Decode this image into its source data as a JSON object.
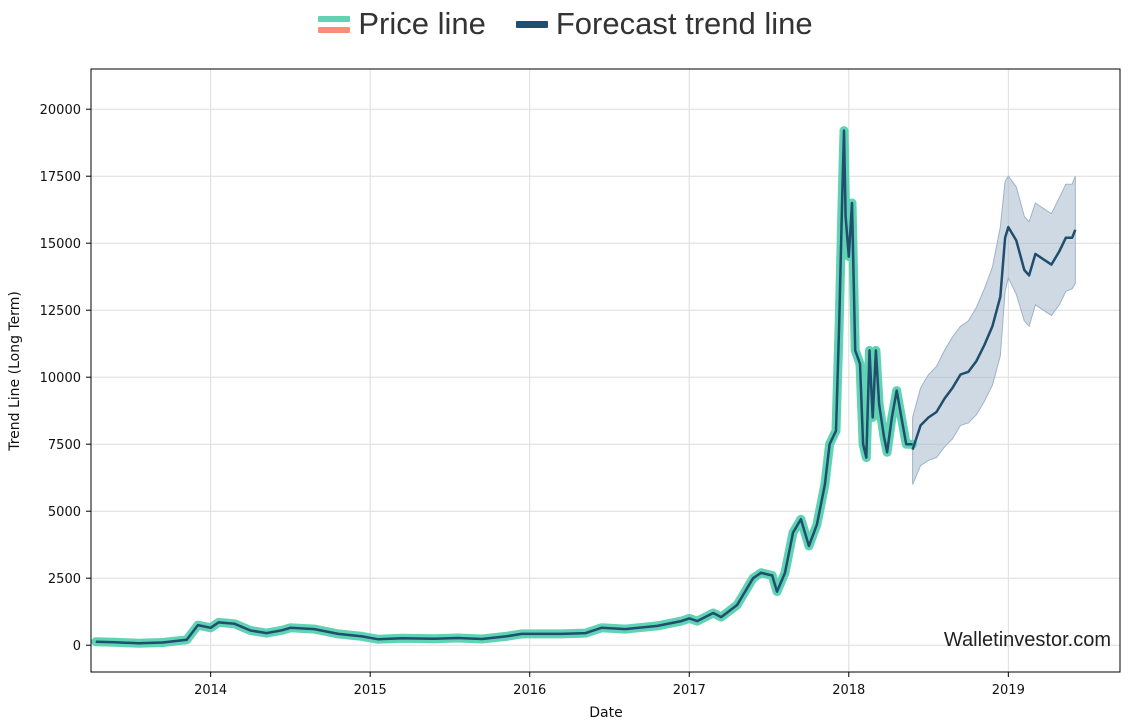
{
  "legend": {
    "price_label": "Price line",
    "forecast_label": "Forecast trend line"
  },
  "watermark": "Walletinvestor.com",
  "colors": {
    "price": "#5fd3b3",
    "price_alt": "#fa8c78",
    "trend": "#1f4e6e",
    "band": "#9db4c8",
    "grid": "#dddddd"
  },
  "chart_data": {
    "type": "line",
    "title": "",
    "xlabel": "Date",
    "ylabel": "Trend Line (Long Term)",
    "xlim": [
      2013.25,
      2019.7
    ],
    "ylim": [
      -1000,
      21500
    ],
    "xticks": [
      {
        "v": 2014,
        "label": "2014"
      },
      {
        "v": 2015,
        "label": "2015"
      },
      {
        "v": 2016,
        "label": "2016"
      },
      {
        "v": 2017,
        "label": "2017"
      },
      {
        "v": 2018,
        "label": "2018"
      },
      {
        "v": 2019,
        "label": "2019"
      }
    ],
    "yticks": [
      {
        "v": 0,
        "label": "0"
      },
      {
        "v": 2500,
        "label": "2500"
      },
      {
        "v": 5000,
        "label": "5000"
      },
      {
        "v": 7500,
        "label": "7500"
      },
      {
        "v": 10000,
        "label": "10000"
      },
      {
        "v": 12500,
        "label": "12500"
      },
      {
        "v": 15000,
        "label": "15000"
      },
      {
        "v": 17500,
        "label": "17500"
      },
      {
        "v": 20000,
        "label": "20000"
      }
    ],
    "grid": true,
    "series": [
      {
        "name": "Price line",
        "points": [
          [
            2013.28,
            130
          ],
          [
            2013.4,
            110
          ],
          [
            2013.55,
            70
          ],
          [
            2013.7,
            100
          ],
          [
            2013.85,
            200
          ],
          [
            2013.92,
            750
          ],
          [
            2014.0,
            650
          ],
          [
            2014.05,
            850
          ],
          [
            2014.15,
            800
          ],
          [
            2014.25,
            550
          ],
          [
            2014.35,
            450
          ],
          [
            2014.45,
            560
          ],
          [
            2014.5,
            650
          ],
          [
            2014.65,
            600
          ],
          [
            2014.8,
            420
          ],
          [
            2014.95,
            330
          ],
          [
            2015.05,
            220
          ],
          [
            2015.2,
            260
          ],
          [
            2015.4,
            240
          ],
          [
            2015.55,
            270
          ],
          [
            2015.7,
            230
          ],
          [
            2015.85,
            330
          ],
          [
            2015.95,
            420
          ],
          [
            2016.05,
            420
          ],
          [
            2016.2,
            420
          ],
          [
            2016.35,
            450
          ],
          [
            2016.45,
            650
          ],
          [
            2016.6,
            600
          ],
          [
            2016.8,
            720
          ],
          [
            2016.95,
            900
          ],
          [
            2017.0,
            1000
          ],
          [
            2017.05,
            900
          ],
          [
            2017.15,
            1200
          ],
          [
            2017.2,
            1050
          ],
          [
            2017.3,
            1500
          ],
          [
            2017.4,
            2500
          ],
          [
            2017.45,
            2700
          ],
          [
            2017.52,
            2600
          ],
          [
            2017.55,
            2000
          ],
          [
            2017.6,
            2700
          ],
          [
            2017.65,
            4200
          ],
          [
            2017.7,
            4700
          ],
          [
            2017.75,
            3700
          ],
          [
            2017.8,
            4500
          ],
          [
            2017.85,
            6000
          ],
          [
            2017.88,
            7500
          ],
          [
            2017.92,
            8000
          ],
          [
            2017.94,
            12000
          ],
          [
            2017.96,
            17000
          ],
          [
            2017.97,
            19200
          ],
          [
            2017.98,
            16000
          ],
          [
            2018.0,
            14500
          ],
          [
            2018.02,
            16500
          ],
          [
            2018.04,
            11000
          ],
          [
            2018.07,
            10500
          ],
          [
            2018.09,
            7500
          ],
          [
            2018.11,
            7000
          ],
          [
            2018.13,
            11000
          ],
          [
            2018.15,
            8500
          ],
          [
            2018.17,
            11000
          ],
          [
            2018.19,
            9000
          ],
          [
            2018.22,
            7800
          ],
          [
            2018.24,
            7200
          ],
          [
            2018.27,
            8500
          ],
          [
            2018.3,
            9500
          ],
          [
            2018.33,
            8500
          ],
          [
            2018.36,
            7500
          ],
          [
            2018.4,
            7500
          ]
        ]
      },
      {
        "name": "Forecast trend line",
        "points": [
          [
            2018.4,
            7300
          ],
          [
            2018.45,
            8200
          ],
          [
            2018.5,
            8500
          ],
          [
            2018.55,
            8700
          ],
          [
            2018.6,
            9200
          ],
          [
            2018.65,
            9600
          ],
          [
            2018.7,
            10100
          ],
          [
            2018.75,
            10200
          ],
          [
            2018.8,
            10600
          ],
          [
            2018.85,
            11200
          ],
          [
            2018.9,
            11900
          ],
          [
            2018.95,
            13000
          ],
          [
            2018.98,
            15200
          ],
          [
            2019.0,
            15600
          ],
          [
            2019.05,
            15100
          ],
          [
            2019.1,
            14000
          ],
          [
            2019.13,
            13800
          ],
          [
            2019.17,
            14600
          ],
          [
            2019.22,
            14400
          ],
          [
            2019.27,
            14200
          ],
          [
            2019.32,
            14700
          ],
          [
            2019.36,
            15200
          ],
          [
            2019.4,
            15200
          ],
          [
            2019.42,
            15500
          ]
        ],
        "band_upper": [
          [
            2018.4,
            8500
          ],
          [
            2018.45,
            9600
          ],
          [
            2018.5,
            10100
          ],
          [
            2018.55,
            10400
          ],
          [
            2018.6,
            11000
          ],
          [
            2018.65,
            11500
          ],
          [
            2018.7,
            11900
          ],
          [
            2018.75,
            12100
          ],
          [
            2018.8,
            12600
          ],
          [
            2018.85,
            13300
          ],
          [
            2018.9,
            14100
          ],
          [
            2018.95,
            15600
          ],
          [
            2018.98,
            17300
          ],
          [
            2019.0,
            17500
          ],
          [
            2019.05,
            17100
          ],
          [
            2019.1,
            16000
          ],
          [
            2019.13,
            15800
          ],
          [
            2019.17,
            16500
          ],
          [
            2019.22,
            16300
          ],
          [
            2019.27,
            16100
          ],
          [
            2019.32,
            16700
          ],
          [
            2019.36,
            17200
          ],
          [
            2019.4,
            17200
          ],
          [
            2019.42,
            17500
          ]
        ],
        "band_lower": [
          [
            2018.4,
            6000
          ],
          [
            2018.45,
            6700
          ],
          [
            2018.5,
            6900
          ],
          [
            2018.55,
            7000
          ],
          [
            2018.6,
            7400
          ],
          [
            2018.65,
            7700
          ],
          [
            2018.7,
            8200
          ],
          [
            2018.75,
            8300
          ],
          [
            2018.8,
            8600
          ],
          [
            2018.85,
            9100
          ],
          [
            2018.9,
            9700
          ],
          [
            2018.95,
            10800
          ],
          [
            2018.98,
            13200
          ],
          [
            2019.0,
            13700
          ],
          [
            2019.05,
            13100
          ],
          [
            2019.1,
            12100
          ],
          [
            2019.13,
            11900
          ],
          [
            2019.17,
            12700
          ],
          [
            2019.22,
            12500
          ],
          [
            2019.27,
            12300
          ],
          [
            2019.32,
            12700
          ],
          [
            2019.36,
            13200
          ],
          [
            2019.4,
            13300
          ],
          [
            2019.42,
            13500
          ]
        ]
      }
    ]
  }
}
